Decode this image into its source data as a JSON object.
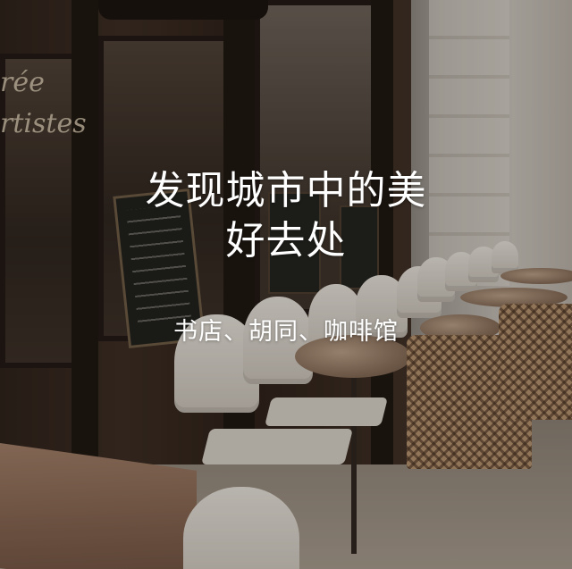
{
  "poster": {
    "title_lines": [
      "发现城市中的美",
      "好去处"
    ],
    "subtitle": "书店、胡同、咖啡馆",
    "text_color": "#ffffff",
    "photo": {
      "description_icon": "cafe-terrace-photo-icon",
      "sign_text": [
        "rée",
        "rtistes"
      ]
    }
  }
}
